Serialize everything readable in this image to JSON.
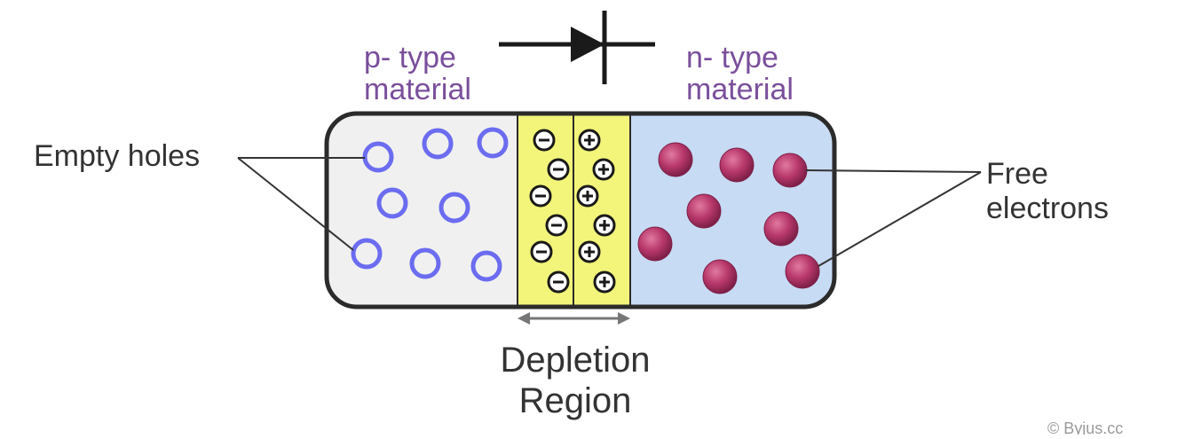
{
  "labels": {
    "p_type_line1": "p- type",
    "p_type_line2": "material",
    "n_type_line1": "n- type",
    "n_type_line2": "material",
    "empty_holes": "Empty holes",
    "free_electrons_line1": "Free",
    "free_electrons_line2": "electrons",
    "depletion_line1": "Depletion",
    "depletion_line2": "Region",
    "watermark": "© Byjus.cc"
  },
  "colors": {
    "p_region": "#f0f0f0",
    "depletion": "#f3f57a",
    "n_region": "#c7dbf4",
    "outline": "#2b2b2b",
    "hole": "#6b6cf0",
    "electron": "#b8386b",
    "material_text": "#7a4f9c",
    "label_text": "#333333",
    "arrow": "#777777"
  },
  "icons": {
    "diode_symbol": "diode-icon",
    "hole_marker": "hole-icon",
    "electron_marker": "electron-icon",
    "negative_ion": "minus-ion-icon",
    "positive_ion": "plus-ion-icon"
  }
}
